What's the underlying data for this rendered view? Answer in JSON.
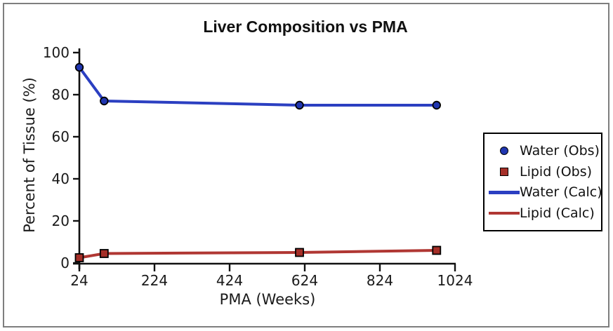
{
  "window": {
    "background_color": "#ffffff",
    "frame_border_color": "#7e7e7e"
  },
  "chart_data": {
    "type": "line",
    "title": "Liver Composition vs PMA",
    "xlabel": "PMA (Weeks)",
    "ylabel": "Percent of Tissue (%)",
    "xlim": [
      24,
      1024
    ],
    "ylim": [
      0,
      100
    ],
    "x_ticks": [
      24,
      224,
      424,
      624,
      824,
      1024
    ],
    "y_ticks": [
      0,
      20,
      40,
      60,
      80,
      100
    ],
    "grid": false,
    "legend_position": "right-outside-middle",
    "axis_color": "#111111",
    "series": [
      {
        "name": "Water (Calc)",
        "type": "line",
        "color": "#2b3fc1",
        "x": [
          24,
          90,
          610,
          975
        ],
        "y": [
          93,
          77,
          75,
          75
        ]
      },
      {
        "name": "Lipid (Calc)",
        "type": "line",
        "color": "#b03733",
        "x": [
          24,
          90,
          610,
          975
        ],
        "y": [
          2.5,
          4.5,
          5,
          6
        ]
      },
      {
        "name": "Water (Obs)",
        "type": "scatter",
        "marker": "circle",
        "color": "#2036b0",
        "edge_color": "#000000",
        "x": [
          24,
          90,
          610,
          975
        ],
        "y": [
          93,
          77,
          75,
          75
        ]
      },
      {
        "name": "Lipid (Obs)",
        "type": "scatter",
        "marker": "square",
        "color": "#a52f28",
        "edge_color": "#000000",
        "x": [
          24,
          90,
          610,
          975
        ],
        "y": [
          2.5,
          4.5,
          5,
          6
        ]
      }
    ],
    "legend": [
      {
        "label": "Water (Obs)",
        "swatch": "circle",
        "color": "#2036b0"
      },
      {
        "label": "Lipid (Obs)",
        "swatch": "square",
        "color": "#a52f28"
      },
      {
        "label": "Water (Calc)",
        "swatch": "line",
        "color": "#2b3fc1"
      },
      {
        "label": "Lipid (Calc)",
        "swatch": "line",
        "color": "#b03733"
      }
    ]
  }
}
